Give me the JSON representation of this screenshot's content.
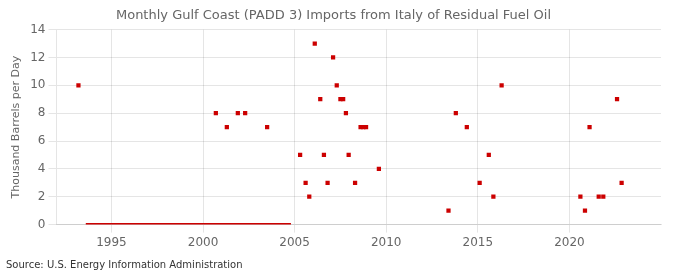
{
  "chart_data": {
    "type": "scatter",
    "title": "Monthly Gulf Coast (PADD 3) Imports from Italy of Residual Fuel Oil",
    "y_label": "Thousand Barrels per Day",
    "annotation": "Source: U.S. Energy Information Administration",
    "xlim": [
      1992.0,
      2025.0
    ],
    "xticks": [
      1995,
      2000,
      2005,
      2010,
      2015,
      2020
    ],
    "ylim": [
      0,
      14
    ],
    "yticks": [
      0,
      2,
      4,
      6,
      8,
      10,
      12,
      14
    ],
    "grid": true,
    "series": [
      {
        "type": "scatter",
        "color": "#cc0000",
        "marker": "square",
        "x": [
          1993.2,
          2000.7,
          2001.3,
          2001.9,
          2002.3,
          2003.5,
          2005.3,
          2005.6,
          2005.8,
          2006.1,
          2006.4,
          2006.6,
          2006.8,
          2007.1,
          2007.3,
          2007.5,
          2007.65,
          2007.8,
          2007.95,
          2008.3,
          2008.6,
          2008.75,
          2008.9,
          2009.6,
          2013.4,
          2013.8,
          2014.4,
          2015.1,
          2015.6,
          2015.85,
          2016.3,
          2020.6,
          2020.85,
          2021.1,
          2021.6,
          2021.85,
          2022.6,
          2022.85
        ],
        "values": [
          10,
          8,
          7,
          8,
          8,
          7,
          5,
          3,
          2,
          13,
          9,
          5,
          3,
          12,
          10,
          9,
          9,
          8,
          5,
          3,
          7,
          7,
          7,
          4,
          1,
          8,
          7,
          3,
          5,
          2,
          10,
          2,
          1,
          7,
          2,
          2,
          9,
          3
        ]
      },
      {
        "type": "line",
        "color": "#cc0000",
        "line_style": "solid",
        "x": [
          1993.6,
          2004.8
        ],
        "values": [
          0,
          0
        ]
      }
    ]
  }
}
